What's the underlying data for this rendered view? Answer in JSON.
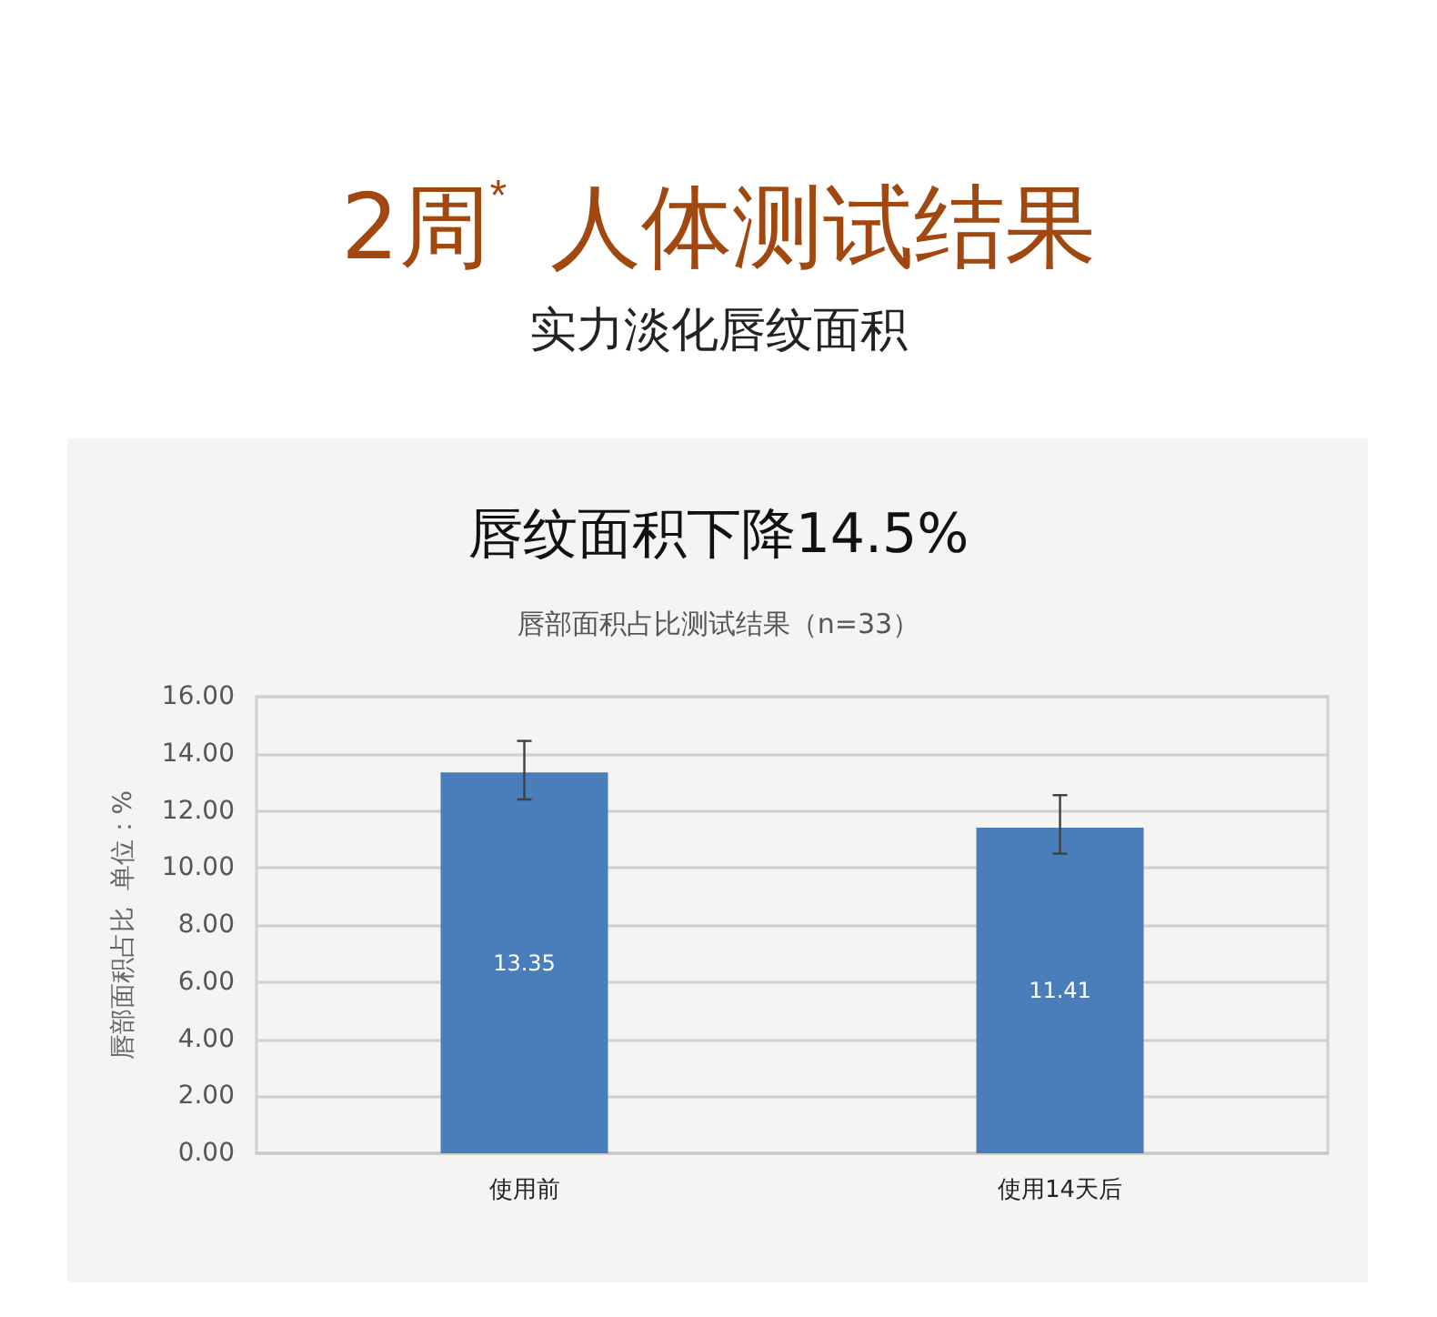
{
  "chart_data": {
    "type": "bar",
    "title": "2周$^{*}$ 人体测试结果",
    "subtitle": "实力淡化唇纹面积",
    "annotations": [
      "唇纹面积下降14.5%",
      "唇部面积占比测试结果（n=33）"
    ],
    "ylabel": "唇部面积占比  单位：%",
    "categories": [
      "使用前",
      "使用14天后"
    ],
    "values": [
      13.35,
      11.41
    ],
    "color": "#4a7ebb",
    "errors": [
      [
        12.4,
        14.45
      ],
      [
        10.5,
        12.55
      ]
    ],
    "data_labels": true,
    "ylim": [
      0,
      16
    ],
    "yticks": [
      {
        "value": 0,
        "label": "0.00"
      },
      {
        "value": 2,
        "label": "2.00"
      },
      {
        "value": 4,
        "label": "4.00"
      },
      {
        "value": 6,
        "label": "6.00"
      },
      {
        "value": 8,
        "label": "8.00"
      },
      {
        "value": 10,
        "label": "10.00"
      },
      {
        "value": 12,
        "label": "12.00"
      },
      {
        "value": 14,
        "label": "14.00"
      },
      {
        "value": 16,
        "label": "16.00"
      }
    ],
    "grid": "y"
  }
}
